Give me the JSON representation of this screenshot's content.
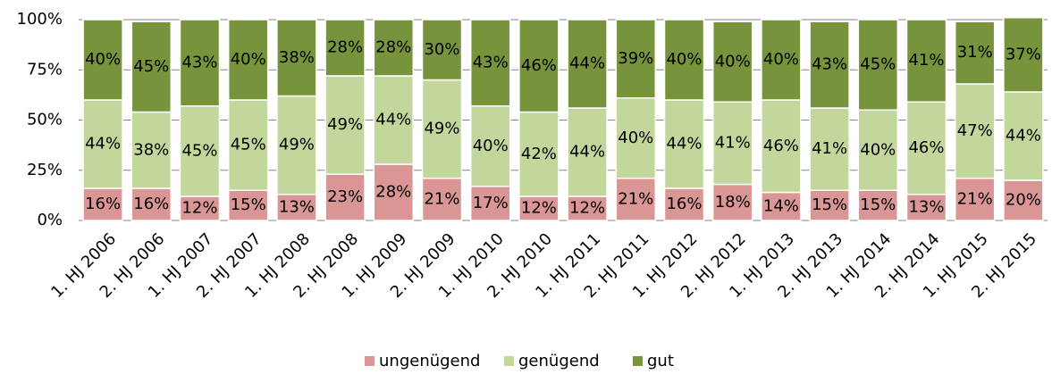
{
  "chart_data": {
    "type": "stacked_bar",
    "categories": [
      "1. HJ 2006",
      "2. HJ 2006",
      "1. HJ 2007",
      "2. HJ 2007",
      "1. HJ 2008",
      "2. HJ 2008",
      "1. HJ 2009",
      "2. HJ 2009",
      "1. HJ 2010",
      "2. HJ 2010",
      "1. HJ 2011",
      "2. HJ 2011",
      "1. HJ 2012",
      "2. HJ 2012",
      "1. HJ 2013",
      "2. HJ 2013",
      "1. HJ 2014",
      "2. HJ 2014",
      "1. HJ 2015",
      "2. HJ 2015"
    ],
    "series": [
      {
        "name": "ungenügend",
        "color": "#d99694",
        "values": [
          16,
          16,
          12,
          15,
          13,
          23,
          28,
          21,
          17,
          12,
          12,
          21,
          16,
          18,
          14,
          15,
          15,
          13,
          21,
          20
        ],
        "value_labels": [
          "16%",
          "16%",
          "12%",
          "15%",
          "13%",
          "23%",
          "28%",
          "21%",
          "17%",
          "12%",
          "12%",
          "21%",
          "16%",
          "18%",
          "14%",
          "15%",
          "15%",
          "13%",
          "21%",
          "20%"
        ]
      },
      {
        "name": "genügend",
        "color": "#c3d69b",
        "values": [
          44,
          38,
          45,
          45,
          49,
          49,
          44,
          49,
          40,
          42,
          44,
          40,
          44,
          41,
          46,
          41,
          40,
          46,
          47,
          44
        ],
        "value_labels": [
          "44%",
          "38%",
          "45%",
          "45%",
          "49%",
          "49%",
          "44%",
          "49%",
          "40%",
          "42%",
          "44%",
          "40%",
          "44%",
          "41%",
          "46%",
          "41%",
          "40%",
          "46%",
          "47%",
          "44%"
        ]
      },
      {
        "name": "gut",
        "color": "#77933c",
        "values": [
          40,
          45,
          43,
          40,
          38,
          28,
          28,
          30,
          43,
          46,
          44,
          39,
          40,
          40,
          40,
          43,
          45,
          41,
          31,
          37
        ],
        "value_labels": [
          "40%",
          "45%",
          "43%",
          "40%",
          "38%",
          "28%",
          "28%",
          "30%",
          "43%",
          "46%",
          "44%",
          "39%",
          "40%",
          "40%",
          "40%",
          "43%",
          "45%",
          "41%",
          "31%",
          "37%"
        ]
      }
    ],
    "ylim": [
      0,
      100
    ],
    "yticks": [
      {
        "value": 0,
        "label": "0%"
      },
      {
        "value": 25,
        "label": "25%"
      },
      {
        "value": 50,
        "label": "50%"
      },
      {
        "value": 75,
        "label": "75%"
      },
      {
        "value": 100,
        "label": "100%"
      }
    ],
    "grid": true,
    "legend": "bottom"
  }
}
